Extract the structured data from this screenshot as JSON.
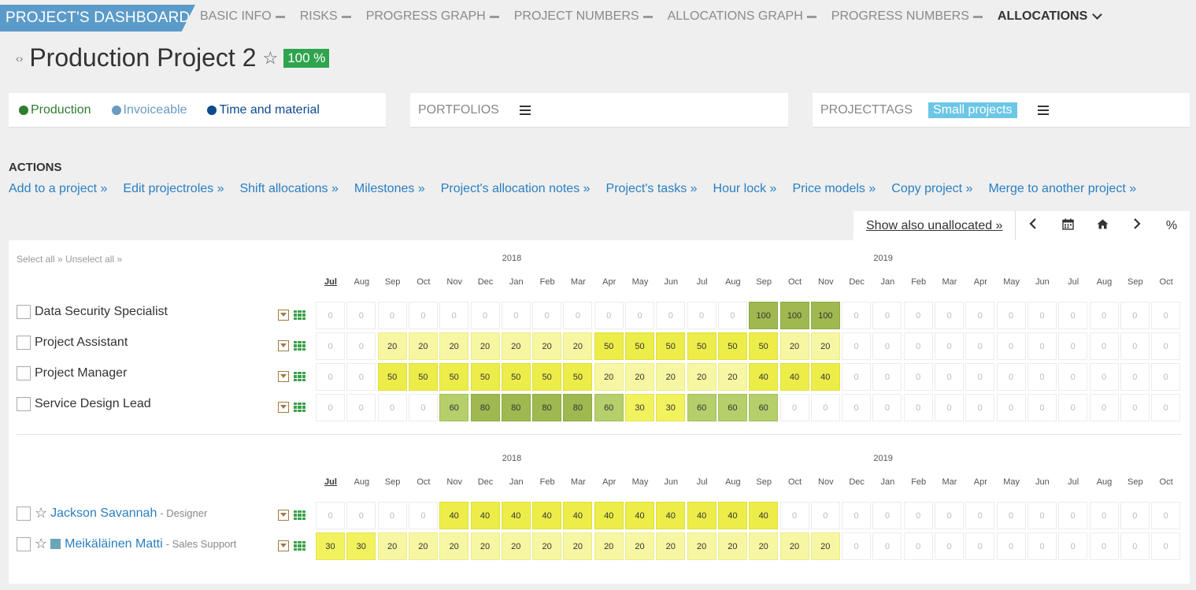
{
  "nav": {
    "brand": "PROJECT'S DASHBOARD",
    "tabs": [
      {
        "label": "BASIC INFO",
        "active": false
      },
      {
        "label": "RISKS",
        "active": false
      },
      {
        "label": "PROGRESS GRAPH",
        "active": false
      },
      {
        "label": "PROJECT NUMBERS",
        "active": false
      },
      {
        "label": "ALLOCATIONS GRAPH",
        "active": false
      },
      {
        "label": "PROGRESS NUMBERS",
        "active": false
      },
      {
        "label": "ALLOCATIONS",
        "active": true
      }
    ]
  },
  "project": {
    "title": "Production Project 2",
    "percent": "100 %"
  },
  "info": {
    "tags": [
      {
        "label": "Production",
        "color": "#2e7d32"
      },
      {
        "label": "Invoiceable",
        "color": "#6a9bc0"
      },
      {
        "label": "Time and material",
        "color": "#0d4a8c"
      }
    ],
    "portfolios_label": "PORTFOLIOS",
    "projecttags_label": "PROJECTTAGS",
    "projecttag": "Small projects"
  },
  "actions": {
    "heading": "ACTIONS",
    "items": [
      "Add to a project »",
      "Edit projectroles »",
      "Shift allocations »",
      "Milestones »",
      "Project's allocation notes »",
      "Project's tasks »",
      "Hour lock »",
      "Price models »",
      "Copy project »",
      "Merge to another project »"
    ]
  },
  "toolbar": {
    "show_unallocated": "Show also unallocated »",
    "percent": "%"
  },
  "grid": {
    "select_links": "Select all » Unselect all »",
    "years": [
      "2018",
      "2019"
    ],
    "months": [
      "Jul",
      "Aug",
      "Sep",
      "Oct",
      "Nov",
      "Dec",
      "Jan",
      "Feb",
      "Mar",
      "Apr",
      "May",
      "Jun",
      "Jul",
      "Aug",
      "Sep",
      "Oct",
      "Nov",
      "Dec",
      "Jan",
      "Feb",
      "Mar",
      "Apr",
      "May",
      "Jun",
      "Jul",
      "Aug",
      "Sep",
      "Oct"
    ],
    "roles": [
      {
        "name": "Data Security Specialist",
        "values": [
          0,
          0,
          0,
          0,
          0,
          0,
          0,
          0,
          0,
          0,
          0,
          0,
          0,
          0,
          100,
          100,
          100,
          0,
          0,
          0,
          0,
          0,
          0,
          0,
          0,
          0,
          0,
          0
        ]
      },
      {
        "name": "Project Assistant",
        "values": [
          0,
          0,
          20,
          20,
          20,
          20,
          20,
          20,
          20,
          50,
          50,
          50,
          50,
          50,
          50,
          20,
          20,
          0,
          0,
          0,
          0,
          0,
          0,
          0,
          0,
          0,
          0,
          0
        ]
      },
      {
        "name": "Project Manager",
        "values": [
          0,
          0,
          50,
          50,
          50,
          50,
          50,
          50,
          50,
          20,
          20,
          20,
          20,
          20,
          40,
          40,
          40,
          0,
          0,
          0,
          0,
          0,
          0,
          0,
          0,
          0,
          0,
          0
        ]
      },
      {
        "name": "Service Design Lead",
        "values": [
          0,
          0,
          0,
          0,
          60,
          80,
          80,
          80,
          80,
          60,
          30,
          30,
          60,
          60,
          60,
          0,
          0,
          0,
          0,
          0,
          0,
          0,
          0,
          0,
          0,
          0,
          0,
          0
        ]
      }
    ],
    "people": [
      {
        "name": "Jackson Savannah",
        "role": "- Designer",
        "values": [
          0,
          0,
          0,
          0,
          40,
          40,
          40,
          40,
          40,
          40,
          40,
          40,
          40,
          40,
          40,
          0,
          0,
          0,
          0,
          0,
          0,
          0,
          0,
          0,
          0,
          0,
          0,
          0
        ]
      },
      {
        "name": "Meikäläinen Matti",
        "role": "- Sales Support",
        "values": [
          30,
          30,
          20,
          20,
          20,
          20,
          20,
          20,
          20,
          20,
          20,
          20,
          20,
          20,
          20,
          20,
          20,
          0,
          0,
          0,
          0,
          0,
          0,
          0,
          0,
          0,
          0,
          0
        ]
      }
    ]
  }
}
